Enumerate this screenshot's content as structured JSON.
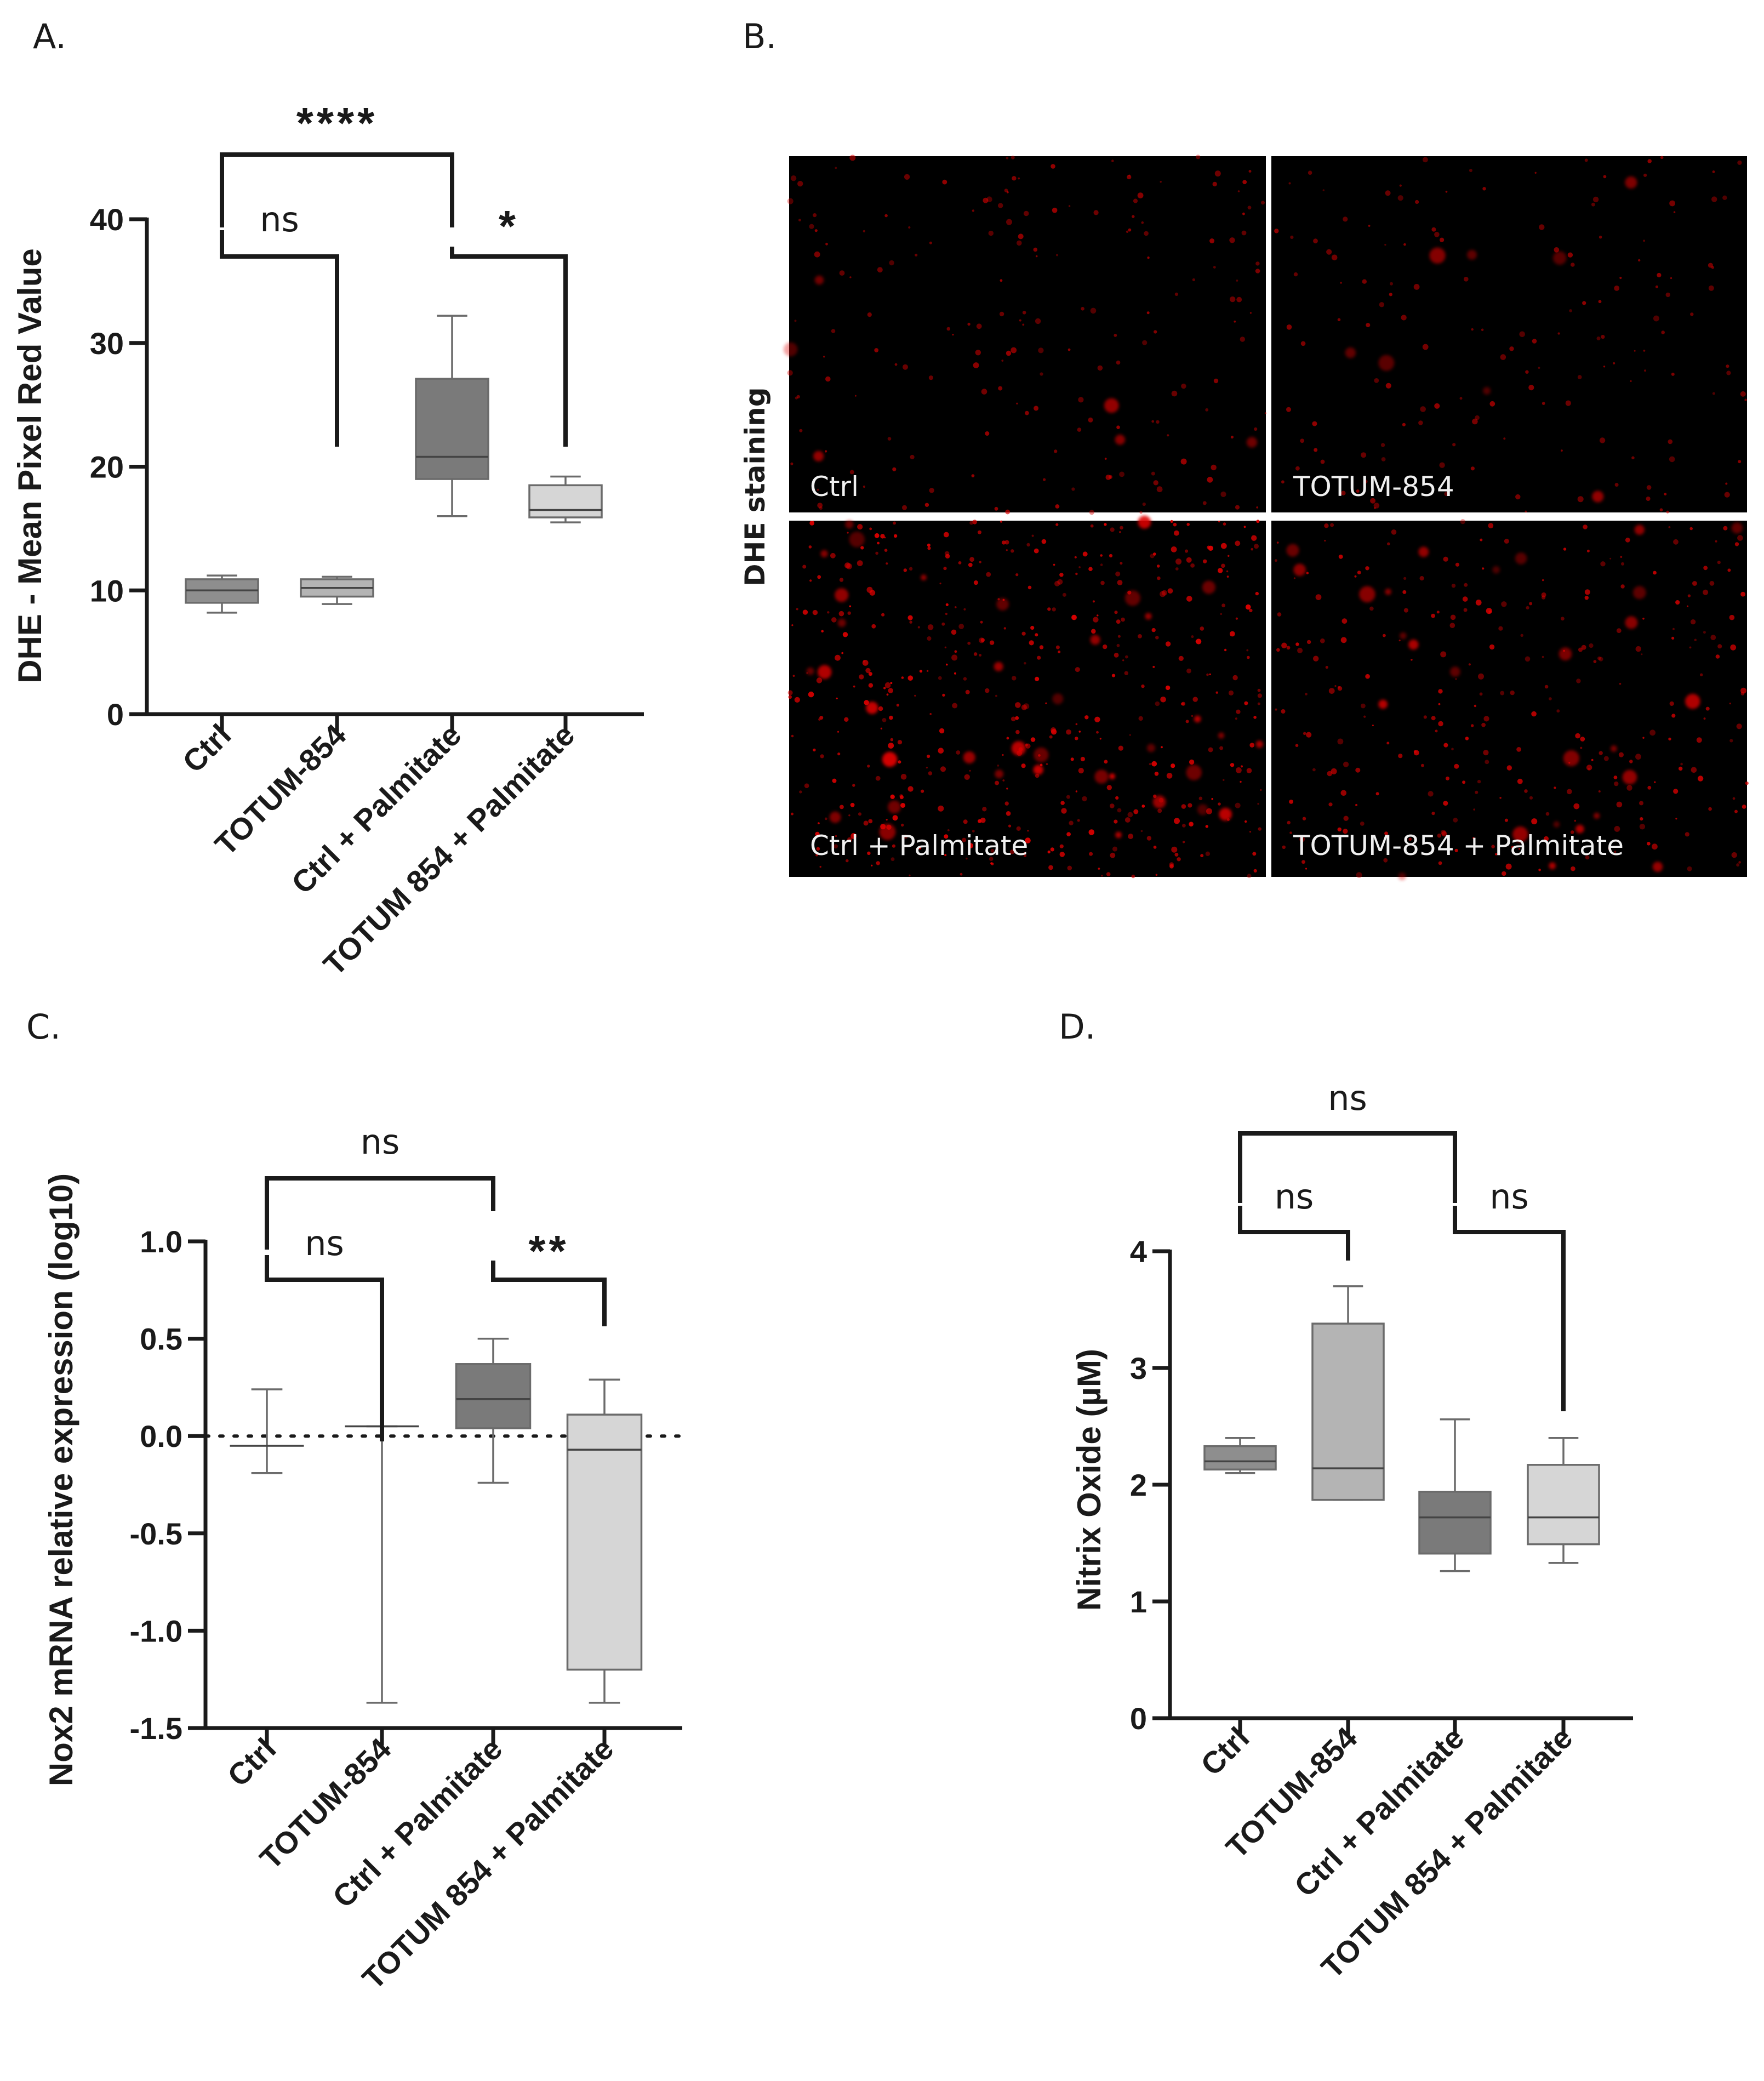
{
  "panels": {
    "A": {
      "letter": "A."
    },
    "B": {
      "letter": "B."
    },
    "C": {
      "letter": "C."
    },
    "D": {
      "letter": "D."
    }
  },
  "colors": {
    "ctrl": "#8e8e8e",
    "totum": "#b4b4b4",
    "ctrl_palmitate": "#7a7a7a",
    "totum_palmitate": "#d6d6d6",
    "stain": "#e00000"
  },
  "microscopy": {
    "side_label": "DHE staining",
    "tiles": [
      {
        "label": "Ctrl",
        "density": 0.35
      },
      {
        "label": "TOTUM-854",
        "density": 0.3
      },
      {
        "label": "Ctrl + Palmitate",
        "density": 1.0
      },
      {
        "label": "TOTUM-854 + Palmitate",
        "density": 0.6
      }
    ]
  },
  "chart_data": [
    {
      "panel": "A",
      "type": "box",
      "ylabel": "DHE - Mean Pixel Red Value",
      "ylim": [
        0,
        40
      ],
      "yticks": [
        0,
        10,
        20,
        30,
        40
      ],
      "ytick_labels": [
        "0",
        "10",
        "20",
        "30",
        "40"
      ],
      "categories": [
        "Ctrl",
        "TOTUM-854",
        "Ctrl + Palmitate",
        "TOTUM 854 + Palmitate"
      ],
      "boxes": [
        {
          "min": 8.2,
          "q1": 9.0,
          "median": 10.0,
          "q3": 10.9,
          "max": 11.2
        },
        {
          "min": 8.9,
          "q1": 9.5,
          "median": 10.2,
          "q3": 10.9,
          "max": 11.1
        },
        {
          "min": 16.0,
          "q1": 19.0,
          "median": 20.8,
          "q3": 27.1,
          "max": 32.2
        },
        {
          "min": 15.5,
          "q1": 15.9,
          "median": 16.5,
          "q3": 18.5,
          "max": 19.2
        }
      ],
      "significance": [
        {
          "from": 0,
          "to": 2,
          "label": "****"
        },
        {
          "from": 0,
          "to": 1,
          "label": "ns"
        },
        {
          "from": 2,
          "to": 3,
          "label": "*"
        }
      ]
    },
    {
      "panel": "C",
      "type": "box",
      "ylabel": "Nox2 mRNA relative expression (log10)",
      "ylim": [
        -1.5,
        1.0
      ],
      "yticks": [
        -1.5,
        -1.0,
        -0.5,
        0.0,
        0.5,
        1.0
      ],
      "ytick_labels": [
        "-1.5",
        "-1.0",
        "-0.5",
        "0.0",
        "0.5",
        "1.0"
      ],
      "reference_line": 0.0,
      "categories": [
        "Ctrl",
        "TOTUM-854",
        "Ctrl + Palmitate",
        "TOTUM 854 + Palmitate"
      ],
      "boxes": [
        {
          "min": -0.19,
          "q1": -0.05,
          "median": -0.05,
          "q3": -0.05,
          "max": 0.24
        },
        {
          "min": -1.37,
          "q1": 0.05,
          "median": 0.05,
          "q3": 0.05,
          "max": 0.05
        },
        {
          "min": -0.24,
          "q1": 0.04,
          "median": 0.19,
          "q3": 0.37,
          "max": 0.5
        },
        {
          "min": -1.37,
          "q1": -1.2,
          "median": -0.07,
          "q3": 0.11,
          "max": 0.29
        }
      ],
      "significance": [
        {
          "from": 0,
          "to": 2,
          "label": "ns"
        },
        {
          "from": 0,
          "to": 1,
          "label": "ns"
        },
        {
          "from": 2,
          "to": 3,
          "label": "**"
        }
      ]
    },
    {
      "panel": "D",
      "type": "box",
      "ylabel": "Nitrix Oxide (µM)",
      "ylim": [
        0,
        4
      ],
      "yticks": [
        0,
        1,
        2,
        3,
        4
      ],
      "ytick_labels": [
        "0",
        "1",
        "2",
        "3",
        "4"
      ],
      "categories": [
        "Ctrl",
        "TOTUM-854",
        "Ctrl + Palmitate",
        "TOTUM 854 + Palmitate"
      ],
      "boxes": [
        {
          "min": 2.1,
          "q1": 2.13,
          "median": 2.2,
          "q3": 2.33,
          "max": 2.4
        },
        {
          "min": 1.87,
          "q1": 1.87,
          "median": 2.14,
          "q3": 3.38,
          "max": 3.7
        },
        {
          "min": 1.26,
          "q1": 1.41,
          "median": 1.72,
          "q3": 1.94,
          "max": 2.56
        },
        {
          "min": 1.33,
          "q1": 1.49,
          "median": 1.72,
          "q3": 2.17,
          "max": 2.4
        }
      ],
      "significance": [
        {
          "from": 0,
          "to": 2,
          "label": "ns"
        },
        {
          "from": 0,
          "to": 1,
          "label": "ns"
        },
        {
          "from": 2,
          "to": 3,
          "label": "ns"
        }
      ]
    }
  ]
}
